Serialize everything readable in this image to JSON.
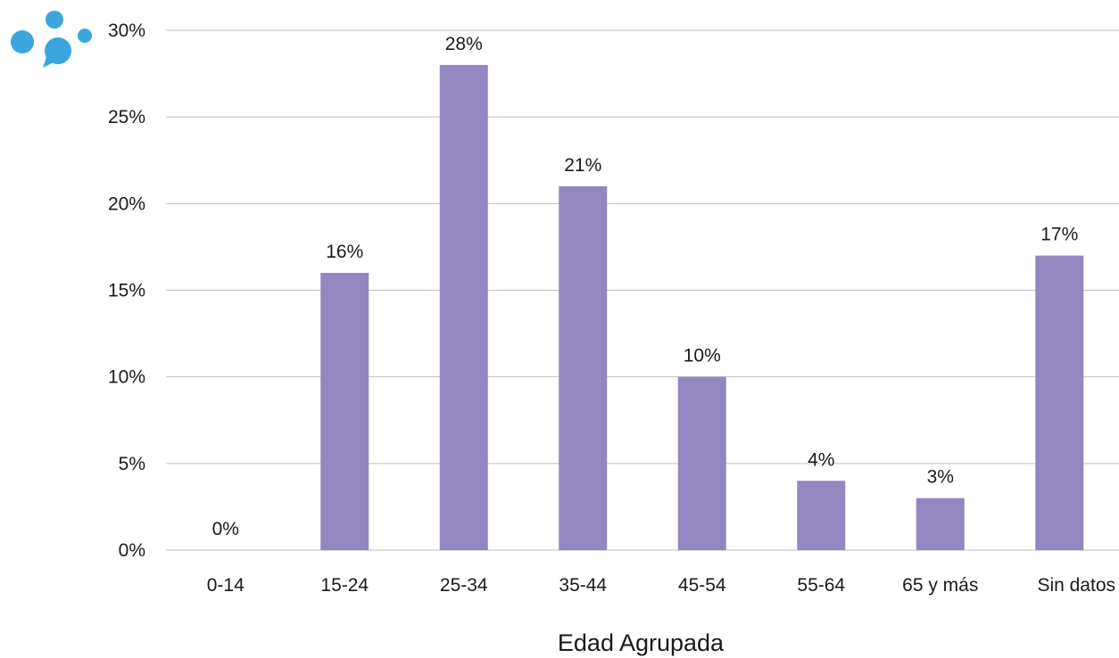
{
  "chart_data": {
    "type": "bar",
    "categories": [
      "0-14",
      "15-24",
      "25-34",
      "35-44",
      "45-54",
      "55-64",
      "65 y más",
      "Sin datos"
    ],
    "values": [
      0,
      16,
      28,
      21,
      10,
      4,
      3,
      17
    ],
    "value_labels": [
      "0%",
      "16%",
      "28%",
      "21%",
      "10%",
      "4%",
      "3%",
      "17%"
    ],
    "ylim": [
      0,
      30
    ],
    "yticks": [
      0,
      5,
      10,
      15,
      20,
      25,
      30
    ],
    "ytick_labels": [
      "0%",
      "5%",
      "10%",
      "15%",
      "20%",
      "25%",
      "30%"
    ],
    "xlabel": "Edad Agrupada",
    "ylabel": "",
    "title": "",
    "grid": true,
    "legend": "none",
    "bar_color": "#9486c0",
    "logo_color": "#3aa6dd"
  }
}
